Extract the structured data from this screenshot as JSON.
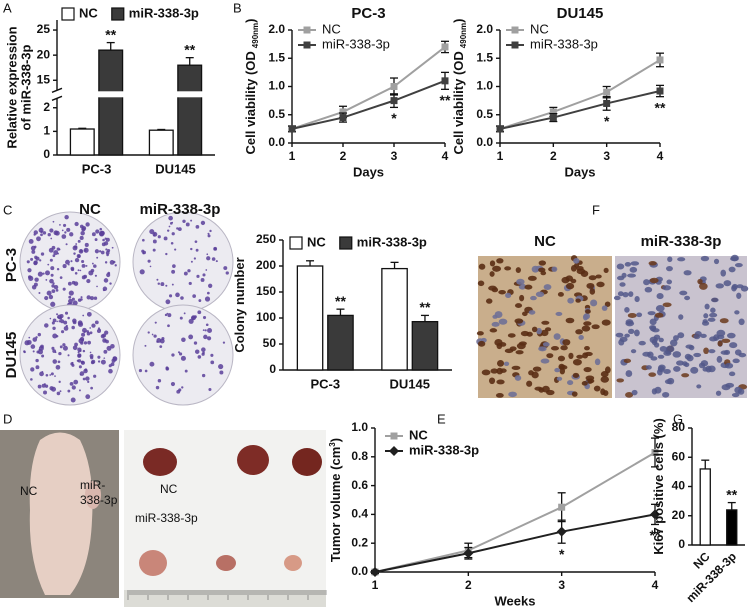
{
  "panel_labels": [
    "A",
    "B",
    "C",
    "D",
    "E",
    "F",
    "G"
  ],
  "colony": {
    "columns": [
      "NC",
      "miR-338-3p"
    ],
    "rows": [
      "PC-3",
      "DU145"
    ]
  },
  "ihc": {
    "columns": [
      "NC",
      "miR-338-3p"
    ]
  },
  "mouse": {
    "left_label": "NC",
    "right_label": [
      "miR-",
      "338-3p"
    ]
  },
  "tumors": {
    "labels": [
      "NC",
      "miR-338-3p"
    ]
  },
  "chart_data": [
    {
      "type": "bar",
      "ylabel": [
        "Relative expression",
        "of miR-338-3p"
      ],
      "categories": [
        "PC-3",
        "DU145"
      ],
      "series": [
        {
          "name": "NC",
          "color": "#ffffff",
          "values": [
            1.1,
            1.05
          ],
          "errors": [
            0.03,
            0.03
          ]
        },
        {
          "name": "miR-338-3p",
          "color": "#3a3a3a",
          "values": [
            21,
            18
          ],
          "errors": [
            1.5,
            1.5
          ],
          "annotations": [
            "**",
            "**"
          ]
        }
      ],
      "ylim": [
        0,
        27
      ],
      "ybreak": [
        2.4,
        13
      ],
      "yticks": [
        0,
        1,
        2,
        15,
        20,
        25
      ]
    },
    {
      "type": "line",
      "title": "PC-3",
      "xlabel": "Days",
      "ylabel": "Cell viability (OD",
      "ylabel_sub": "490nm",
      "ylabel_end": ")",
      "x": [
        1,
        2,
        3,
        4
      ],
      "series": [
        {
          "name": "NC",
          "color": "#a0a0a0",
          "marker": "square",
          "values": [
            0.25,
            0.55,
            1.0,
            1.7
          ],
          "errors": [
            0.05,
            0.1,
            0.15,
            0.1
          ]
        },
        {
          "name": "miR-338-3p",
          "color": "#404040",
          "marker": "square",
          "values": [
            0.25,
            0.45,
            0.75,
            1.1
          ],
          "errors": [
            0.05,
            0.08,
            0.12,
            0.15
          ],
          "annotations": [
            null,
            null,
            "*",
            "**"
          ]
        }
      ],
      "xlim": [
        1,
        4
      ],
      "xticks": [
        1,
        2,
        3,
        4
      ],
      "ylim": [
        0,
        2
      ],
      "yticks": [
        {
          "value": 0,
          "label": "0.0"
        },
        0.5,
        {
          "value": 1,
          "label": "1.0"
        },
        1.5,
        {
          "value": 2,
          "label": "2.0"
        }
      ]
    },
    {
      "type": "line",
      "title": "DU145",
      "xlabel": "Days",
      "ylabel": "Cell viability (OD",
      "ylabel_sub": "490nm",
      "ylabel_end": ")",
      "x": [
        1,
        2,
        3,
        4
      ],
      "series": [
        {
          "name": "NC",
          "color": "#a0a0a0",
          "marker": "square",
          "values": [
            0.25,
            0.55,
            0.9,
            1.47
          ],
          "errors": [
            0.05,
            0.08,
            0.1,
            0.12
          ]
        },
        {
          "name": "miR-338-3p",
          "color": "#404040",
          "marker": "square",
          "values": [
            0.25,
            0.45,
            0.7,
            0.92
          ],
          "errors": [
            0.05,
            0.07,
            0.12,
            0.1
          ],
          "annotations": [
            null,
            null,
            "*",
            "**"
          ]
        }
      ],
      "xlim": [
        1,
        4
      ],
      "xticks": [
        1,
        2,
        3,
        4
      ],
      "ylim": [
        0,
        2
      ],
      "yticks": [
        {
          "value": 0,
          "label": "0.0"
        },
        0.5,
        {
          "value": 1,
          "label": "1.0"
        },
        1.5,
        {
          "value": 2,
          "label": "2.0"
        }
      ]
    },
    {
      "type": "bar",
      "ylabel": "Colony number",
      "categories": [
        "PC-3",
        "DU145"
      ],
      "series": [
        {
          "name": "NC",
          "color": "#ffffff",
          "values": [
            200,
            195
          ],
          "errors": [
            10,
            12
          ]
        },
        {
          "name": "miR-338-3p",
          "color": "#3a3a3a",
          "values": [
            105,
            93
          ],
          "errors": [
            12,
            12
          ],
          "annotations": [
            "**",
            "**"
          ]
        }
      ],
      "ylim": [
        0,
        250
      ],
      "yticks": [
        0,
        50,
        100,
        150,
        200,
        250
      ]
    },
    {
      "type": "line",
      "xlabel": "Weeks",
      "ylabel": "Tumor volume (cm",
      "ylabel_sup": "3",
      "ylabel_end": ")",
      "x": [
        1,
        2,
        3,
        4
      ],
      "series": [
        {
          "name": "NC",
          "color": "#a0a0a0",
          "marker": "square",
          "values": [
            0,
            0.15,
            0.45,
            0.83
          ],
          "errors": [
            0.01,
            0.05,
            0.1,
            0.1
          ]
        },
        {
          "name": "miR-338-3p",
          "color": "#202020",
          "marker": "diamond",
          "values": [
            0,
            0.13,
            0.28,
            0.4
          ],
          "errors": [
            0.01,
            0.04,
            0.08,
            0.07
          ],
          "annotations": [
            null,
            null,
            "*",
            "**"
          ]
        }
      ],
      "xlim": [
        1,
        4
      ],
      "xticks": [
        1,
        2,
        3,
        4
      ],
      "ylim": [
        0,
        1
      ],
      "yticks": [
        {
          "value": 0,
          "label": "0.0"
        },
        0.2,
        0.4,
        0.6,
        0.8,
        {
          "value": 1,
          "label": "1.0"
        }
      ]
    },
    {
      "type": "bar",
      "ylabel": "Ki67 positive cells (%)",
      "categories": [
        "NC",
        "miR-338-3p"
      ],
      "xtick_rotation": 45,
      "values": [
        52,
        24
      ],
      "errors": [
        6,
        5
      ],
      "colors": [
        "#ffffff",
        "#000000"
      ],
      "annotations": [
        null,
        "**"
      ],
      "ylim": [
        0,
        80
      ],
      "yticks": [
        0,
        20,
        40,
        60,
        80
      ]
    }
  ]
}
